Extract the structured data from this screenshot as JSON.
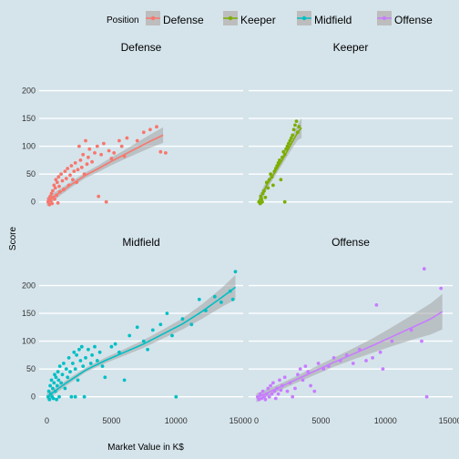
{
  "chart_data": {
    "type": "scatter",
    "legend": {
      "title": "Position",
      "placement": "top",
      "items": [
        {
          "name": "Defense",
          "color": "#f8766d"
        },
        {
          "name": "Keeper",
          "color": "#7cae00"
        },
        {
          "name": "Midfield",
          "color": "#00bfc4"
        },
        {
          "name": "Offense",
          "color": "#c77cff"
        }
      ]
    },
    "xlabel": "Market Value in K$",
    "ylabel": "Score",
    "xlim": [
      -600,
      15200
    ],
    "ylim": [
      -30,
      232
    ],
    "x_ticks": [
      "0",
      "5000",
      "10000",
      "15000"
    ],
    "x_tick_values": [
      0,
      5000,
      10000,
      15000
    ],
    "y_ticks": [
      "0",
      "50",
      "100",
      "150",
      "200"
    ],
    "y_tick_values": [
      0,
      50,
      100,
      150,
      200
    ],
    "grid": true,
    "panels": [
      {
        "title": "Defense",
        "color": "#f8766d",
        "points": [
          [
            100,
            0
          ],
          [
            150,
            5
          ],
          [
            200,
            -5
          ],
          [
            250,
            10
          ],
          [
            300,
            2
          ],
          [
            350,
            15
          ],
          [
            400,
            -3
          ],
          [
            450,
            20
          ],
          [
            500,
            8
          ],
          [
            550,
            30
          ],
          [
            600,
            5
          ],
          [
            650,
            25
          ],
          [
            700,
            40
          ],
          [
            750,
            12
          ],
          [
            800,
            35
          ],
          [
            850,
            -2
          ],
          [
            900,
            45
          ],
          [
            950,
            28
          ],
          [
            1000,
            18
          ],
          [
            1100,
            50
          ],
          [
            1200,
            38
          ],
          [
            1300,
            22
          ],
          [
            1400,
            55
          ],
          [
            1500,
            42
          ],
          [
            1600,
            60
          ],
          [
            1700,
            30
          ],
          [
            1800,
            48
          ],
          [
            1900,
            65
          ],
          [
            2000,
            40
          ],
          [
            2100,
            55
          ],
          [
            2200,
            70
          ],
          [
            2300,
            35
          ],
          [
            2400,
            58
          ],
          [
            2500,
            100
          ],
          [
            2600,
            75
          ],
          [
            2700,
            62
          ],
          [
            2800,
            85
          ],
          [
            2900,
            50
          ],
          [
            3000,
            110
          ],
          [
            3100,
            68
          ],
          [
            3200,
            80
          ],
          [
            3300,
            95
          ],
          [
            3500,
            72
          ],
          [
            3700,
            88
          ],
          [
            3900,
            100
          ],
          [
            4000,
            10
          ],
          [
            4200,
            85
          ],
          [
            4400,
            105
          ],
          [
            4600,
            0
          ],
          [
            4800,
            92
          ],
          [
            5000,
            78
          ],
          [
            5200,
            88
          ],
          [
            5600,
            110
          ],
          [
            5800,
            100
          ],
          [
            6000,
            82
          ],
          [
            6200,
            115
          ],
          [
            7000,
            110
          ],
          [
            7500,
            125
          ],
          [
            8000,
            130
          ],
          [
            8500,
            135
          ],
          [
            8800,
            90
          ],
          [
            9200,
            88
          ]
        ],
        "fit": [
          [
            0,
            0
          ],
          [
            1000,
            17
          ],
          [
            2000,
            33
          ],
          [
            3000,
            48
          ],
          [
            4000,
            60
          ],
          [
            5000,
            73
          ],
          [
            6000,
            85
          ],
          [
            7000,
            97
          ],
          [
            8000,
            109
          ],
          [
            9000,
            120
          ]
        ],
        "band_halfwidth": [
          8,
          6,
          5,
          5,
          6,
          7,
          8,
          10,
          12,
          14
        ]
      },
      {
        "title": "Keeper",
        "color": "#7cae00",
        "points": [
          [
            200,
            0
          ],
          [
            300,
            -3
          ],
          [
            350,
            10
          ],
          [
            400,
            5
          ],
          [
            450,
            0
          ],
          [
            500,
            15
          ],
          [
            600,
            20
          ],
          [
            700,
            8
          ],
          [
            800,
            35
          ],
          [
            900,
            25
          ],
          [
            1000,
            40
          ],
          [
            1100,
            50
          ],
          [
            1200,
            45
          ],
          [
            1300,
            30
          ],
          [
            1400,
            55
          ],
          [
            1500,
            60
          ],
          [
            1600,
            65
          ],
          [
            1700,
            70
          ],
          [
            1800,
            75
          ],
          [
            1900,
            40
          ],
          [
            2000,
            80
          ],
          [
            2100,
            90
          ],
          [
            2200,
            85
          ],
          [
            2300,
            95
          ],
          [
            2400,
            100
          ],
          [
            2500,
            105
          ],
          [
            2600,
            110
          ],
          [
            2700,
            115
          ],
          [
            2800,
            120
          ],
          [
            2900,
            130
          ],
          [
            3000,
            138
          ],
          [
            3100,
            145
          ],
          [
            3200,
            125
          ],
          [
            3300,
            135
          ],
          [
            2200,
            0
          ]
        ],
        "fit": [
          [
            200,
            2
          ],
          [
            800,
            30
          ],
          [
            1400,
            52
          ],
          [
            2000,
            75
          ],
          [
            2600,
            100
          ],
          [
            3200,
            125
          ],
          [
            3500,
            133
          ]
        ],
        "band_halfwidth": [
          10,
          8,
          7,
          8,
          10,
          14,
          18
        ]
      },
      {
        "title": "Midfield",
        "color": "#00bfc4",
        "points": [
          [
            100,
            0
          ],
          [
            150,
            10
          ],
          [
            200,
            -5
          ],
          [
            250,
            20
          ],
          [
            300,
            5
          ],
          [
            350,
            30
          ],
          [
            400,
            0
          ],
          [
            450,
            15
          ],
          [
            500,
            -3
          ],
          [
            550,
            25
          ],
          [
            600,
            40
          ],
          [
            650,
            10
          ],
          [
            700,
            35
          ],
          [
            750,
            -5
          ],
          [
            800,
            20
          ],
          [
            850,
            45
          ],
          [
            900,
            30
          ],
          [
            950,
            0
          ],
          [
            1000,
            55
          ],
          [
            1100,
            25
          ],
          [
            1200,
            40
          ],
          [
            1300,
            60
          ],
          [
            1400,
            15
          ],
          [
            1500,
            50
          ],
          [
            1600,
            35
          ],
          [
            1700,
            70
          ],
          [
            1800,
            45
          ],
          [
            1900,
            0
          ],
          [
            2000,
            60
          ],
          [
            2100,
            80
          ],
          [
            2200,
            50
          ],
          [
            2300,
            75
          ],
          [
            2400,
            30
          ],
          [
            2500,
            85
          ],
          [
            2600,
            65
          ],
          [
            2700,
            90
          ],
          [
            2800,
            55
          ],
          [
            2900,
            0
          ],
          [
            3000,
            70
          ],
          [
            3200,
            85
          ],
          [
            3400,
            60
          ],
          [
            3500,
            75
          ],
          [
            3700,
            90
          ],
          [
            3900,
            65
          ],
          [
            4100,
            80
          ],
          [
            4300,
            55
          ],
          [
            4500,
            35
          ],
          [
            5000,
            90
          ],
          [
            5300,
            95
          ],
          [
            5600,
            80
          ],
          [
            6000,
            30
          ],
          [
            6400,
            110
          ],
          [
            7000,
            125
          ],
          [
            7500,
            100
          ],
          [
            7800,
            85
          ],
          [
            8200,
            120
          ],
          [
            8800,
            130
          ],
          [
            9300,
            150
          ],
          [
            9700,
            110
          ],
          [
            10500,
            140
          ],
          [
            11200,
            130
          ],
          [
            11800,
            175
          ],
          [
            12300,
            155
          ],
          [
            13000,
            180
          ],
          [
            13500,
            170
          ],
          [
            14200,
            190
          ],
          [
            14400,
            175
          ],
          [
            14600,
            225
          ],
          [
            10000,
            0
          ],
          [
            2200,
            0
          ]
        ],
        "fit": [
          [
            0,
            0
          ],
          [
            1500,
            25
          ],
          [
            3000,
            48
          ],
          [
            4500,
            65
          ],
          [
            6000,
            80
          ],
          [
            7500,
            95
          ],
          [
            9000,
            113
          ],
          [
            10500,
            131
          ],
          [
            12000,
            153
          ],
          [
            13500,
            178
          ],
          [
            14600,
            197
          ]
        ],
        "band_halfwidth": [
          6,
          5,
          4,
          5,
          6,
          7,
          8,
          10,
          13,
          17,
          22
        ]
      },
      {
        "title": "Offense",
        "color": "#c77cff",
        "points": [
          [
            100,
            0
          ],
          [
            200,
            -5
          ],
          [
            300,
            5
          ],
          [
            400,
            -3
          ],
          [
            500,
            10
          ],
          [
            600,
            0
          ],
          [
            700,
            -5
          ],
          [
            800,
            5
          ],
          [
            900,
            15
          ],
          [
            1000,
            0
          ],
          [
            1100,
            20
          ],
          [
            1200,
            5
          ],
          [
            1300,
            25
          ],
          [
            1400,
            10
          ],
          [
            1500,
            -3
          ],
          [
            1600,
            15
          ],
          [
            1700,
            5
          ],
          [
            1800,
            30
          ],
          [
            1900,
            12
          ],
          [
            2000,
            20
          ],
          [
            2200,
            35
          ],
          [
            2400,
            10
          ],
          [
            2600,
            25
          ],
          [
            2800,
            0
          ],
          [
            3000,
            15
          ],
          [
            3200,
            40
          ],
          [
            3400,
            50
          ],
          [
            3600,
            30
          ],
          [
            3800,
            55
          ],
          [
            4000,
            45
          ],
          [
            4200,
            20
          ],
          [
            4500,
            10
          ],
          [
            4800,
            60
          ],
          [
            5200,
            50
          ],
          [
            5600,
            55
          ],
          [
            6000,
            70
          ],
          [
            6500,
            65
          ],
          [
            7000,
            75
          ],
          [
            7500,
            60
          ],
          [
            8000,
            85
          ],
          [
            8500,
            65
          ],
          [
            9000,
            70
          ],
          [
            9300,
            165
          ],
          [
            9600,
            80
          ],
          [
            9800,
            50
          ],
          [
            10500,
            100
          ],
          [
            12000,
            120
          ],
          [
            12800,
            100
          ],
          [
            13000,
            230
          ],
          [
            13200,
            0
          ],
          [
            14300,
            195
          ]
        ],
        "fit": [
          [
            0,
            -2
          ],
          [
            1500,
            14
          ],
          [
            3000,
            30
          ],
          [
            4500,
            46
          ],
          [
            6000,
            62
          ],
          [
            7500,
            77
          ],
          [
            9000,
            92
          ],
          [
            10500,
            108
          ],
          [
            12000,
            124
          ],
          [
            13500,
            140
          ],
          [
            14400,
            153
          ]
        ],
        "band_halfwidth": [
          8,
          6,
          6,
          7,
          8,
          10,
          13,
          17,
          22,
          28,
          32
        ]
      }
    ]
  }
}
